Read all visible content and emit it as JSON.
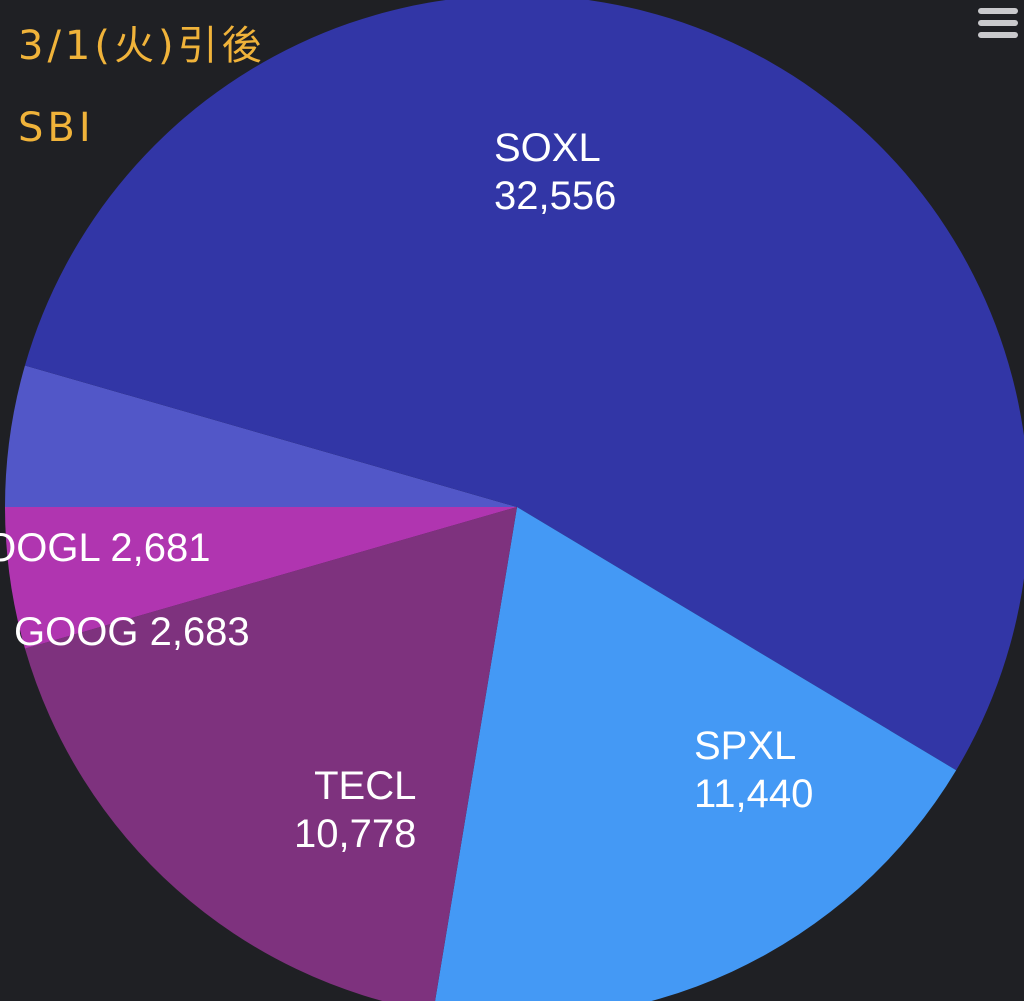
{
  "colors": {
    "background": "#1f2024",
    "soxl": "#3236a6",
    "spxl": "#4499f5",
    "tecl": "#7e327e",
    "goog": "#b035b0",
    "googl": "#5257c8",
    "label": "#ffffff",
    "annotation": "#f0b33a"
  },
  "annotation": {
    "line1": "3/1(火)引後",
    "line2": "SBI"
  },
  "menu": {
    "icon": "hamburger-menu-icon"
  },
  "chart_data": {
    "type": "pie",
    "start_direction": "right",
    "slices": [
      {
        "label": "SOXL",
        "value": 32556,
        "value_text": "32,556"
      },
      {
        "label": "SPXL",
        "value": 11440,
        "value_text": "11,440"
      },
      {
        "label": "TECL",
        "value": 10778,
        "value_text": "10,778"
      },
      {
        "label": "GOOG",
        "value": 2683,
        "value_text": "2,683"
      },
      {
        "label": "GOOGL",
        "value": 2681,
        "value_text": "2,681"
      }
    ]
  }
}
